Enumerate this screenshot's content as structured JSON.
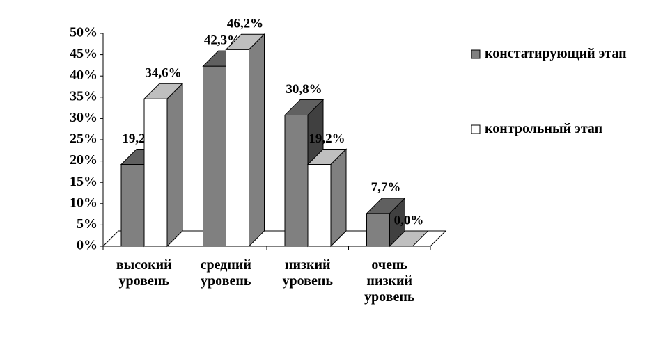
{
  "chart_data": {
    "type": "bar3d",
    "categories": [
      "высокий уровень",
      "средний уровень",
      "низкий уровень",
      "очень низкий уровень"
    ],
    "series": [
      {
        "name": "констатирующий этап",
        "color": "#808080",
        "values": [
          19.2,
          42.3,
          30.8,
          7.7
        ],
        "value_labels": [
          "19,2%",
          "42,3%",
          "30,8%",
          "7,7%"
        ]
      },
      {
        "name": "контрольный этап",
        "color": "#ffffff",
        "values": [
          34.6,
          46.2,
          19.2,
          0.0
        ],
        "value_labels": [
          "34,6%",
          "46,2%",
          "19,2%",
          "0,0%"
        ]
      }
    ],
    "ylim": [
      0,
      50
    ],
    "yticks": [
      {
        "value": 0,
        "label": "0%"
      },
      {
        "value": 5,
        "label": "5%"
      },
      {
        "value": 10,
        "label": "10%"
      },
      {
        "value": 15,
        "label": "15%"
      },
      {
        "value": 20,
        "label": "20%"
      },
      {
        "value": 25,
        "label": "25%"
      },
      {
        "value": 30,
        "label": "30%"
      },
      {
        "value": 35,
        "label": "35%"
      },
      {
        "value": 40,
        "label": "40%"
      },
      {
        "value": 45,
        "label": "45%"
      },
      {
        "value": 50,
        "label": "50%"
      }
    ],
    "legend": "right"
  }
}
